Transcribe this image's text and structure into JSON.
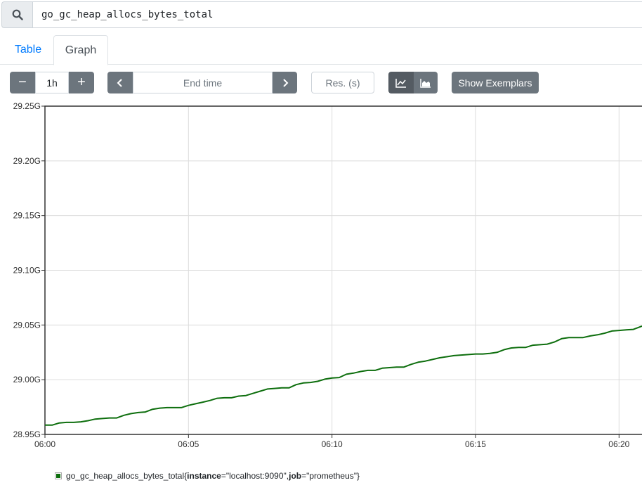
{
  "search": {
    "query": "go_gc_heap_allocs_bytes_total"
  },
  "tabs": [
    {
      "label": "Table"
    },
    {
      "label": "Graph"
    }
  ],
  "toolbar": {
    "range_minus": "−",
    "range_value": "1h",
    "range_plus": "+",
    "end_time_placeholder": "End time",
    "resolution_placeholder": "Res. (s)",
    "show_exemplars": "Show Exemplars"
  },
  "icons": {
    "search": "search-icon",
    "prev": "chevron-left-icon",
    "next": "chevron-right-icon",
    "line": "line-chart-icon",
    "stacked": "area-chart-icon"
  },
  "colors": {
    "series": "#0d6e0d",
    "button": "#6c757d",
    "active_button": "#545b62",
    "tab_active_text": "#007bff"
  },
  "legend": {
    "metric": "go_gc_heap_allocs_bytes_total",
    "labels_text": "{instance=\"localhost:9090\", job=\"prometheus\"}",
    "open": "{",
    "k1": "instance",
    "v1": "=\"localhost:9090\", ",
    "k2": "job",
    "v2": "=\"prometheus\"}"
  },
  "chart_data": {
    "type": "line",
    "grid": true,
    "x_ticks": [
      "06:00",
      "06:05",
      "06:10",
      "06:15",
      "06:20"
    ],
    "x_tick_minutes": [
      0,
      5,
      10,
      15,
      20
    ],
    "xlim_minutes": [
      0,
      20.8
    ],
    "y_ticks": [
      "29.25G",
      "29.20G",
      "29.15G",
      "29.10G",
      "29.05G",
      "29.00G",
      "28.95G"
    ],
    "y_tick_values": [
      29.25,
      29.2,
      29.15,
      29.1,
      29.05,
      29.0,
      28.95
    ],
    "ylim": [
      28.95,
      29.25
    ],
    "y_unit": "G",
    "series": [
      {
        "name": "go_gc_heap_allocs_bytes_total{instance=\"localhost:9090\", job=\"prometheus\"}",
        "x": [
          0,
          0.25,
          0.5,
          0.75,
          1,
          1.25,
          1.5,
          1.75,
          2,
          2.25,
          2.5,
          2.75,
          3,
          3.25,
          3.5,
          3.75,
          4,
          4.25,
          4.5,
          4.75,
          5,
          5.25,
          5.5,
          5.75,
          6,
          6.25,
          6.5,
          6.75,
          7,
          7.25,
          7.5,
          7.75,
          8,
          8.25,
          8.5,
          8.75,
          9,
          9.25,
          9.5,
          9.75,
          10,
          10.25,
          10.5,
          10.75,
          11,
          11.25,
          11.5,
          11.75,
          12,
          12.25,
          12.5,
          12.75,
          13,
          13.25,
          13.5,
          13.75,
          14,
          14.25,
          14.5,
          14.75,
          15,
          15.25,
          15.5,
          15.75,
          16,
          16.25,
          16.5,
          16.75,
          17,
          17.25,
          17.5,
          17.75,
          18,
          18.25,
          18.5,
          18.75,
          19,
          19.25,
          19.5,
          19.75,
          20,
          20.25,
          20.5,
          20.8
        ],
        "values": [
          28.9585,
          28.9585,
          28.9605,
          28.961,
          28.961,
          28.9615,
          28.9625,
          28.964,
          28.9645,
          28.965,
          28.965,
          28.9675,
          28.969,
          28.97,
          28.9705,
          28.973,
          28.974,
          28.9745,
          28.9745,
          28.9745,
          28.9765,
          28.978,
          28.9795,
          28.981,
          28.983,
          28.9835,
          28.9835,
          28.985,
          28.9855,
          28.9875,
          28.9895,
          28.9915,
          28.992,
          28.9925,
          28.9925,
          28.9955,
          28.997,
          28.9975,
          28.9985,
          29.0005,
          29.0015,
          29.002,
          29.005,
          29.006,
          29.0075,
          29.0085,
          29.0085,
          29.0105,
          29.011,
          29.0115,
          29.0115,
          29.014,
          29.016,
          29.017,
          29.0185,
          29.02,
          29.021,
          29.022,
          29.0225,
          29.023,
          29.0235,
          29.0235,
          29.024,
          29.025,
          29.0275,
          29.029,
          29.0295,
          29.0295,
          29.0315,
          29.032,
          29.0325,
          29.0345,
          29.0375,
          29.0385,
          29.0385,
          29.0385,
          29.04,
          29.041,
          29.0425,
          29.0445,
          29.045,
          29.0455,
          29.046,
          29.049
        ]
      }
    ]
  }
}
